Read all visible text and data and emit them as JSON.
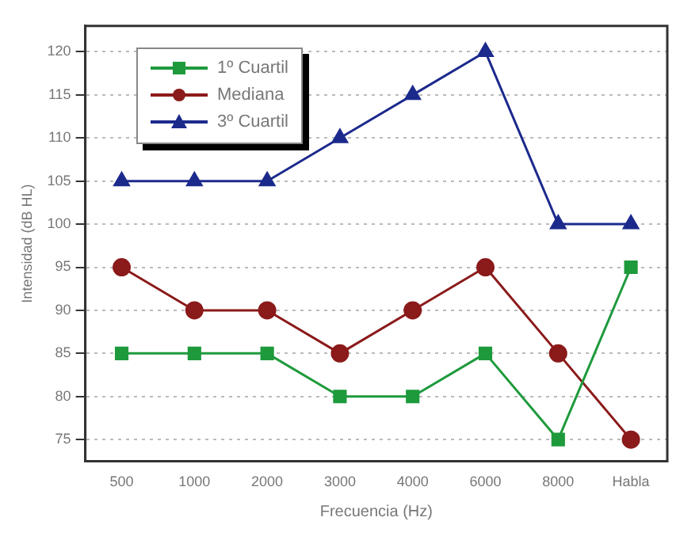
{
  "chart_data": {
    "type": "line",
    "xlabel": "Frecuencia (Hz)",
    "ylabel": "Intensidad (dB HL)",
    "categories": [
      "500",
      "1000",
      "2000",
      "3000",
      "4000",
      "6000",
      "8000",
      "Habla"
    ],
    "series": [
      {
        "name": "1º Cuartil",
        "color": "#1e9a3c",
        "values": [
          85,
          85,
          85,
          80,
          80,
          85,
          75,
          95
        ],
        "marker": "square"
      },
      {
        "name": "Mediana",
        "color": "#8b1a1a",
        "values": [
          95,
          90,
          90,
          85,
          90,
          95,
          85,
          75
        ],
        "marker": "circle"
      },
      {
        "name": "3º Cuartil",
        "color": "#1c2a8c",
        "values": [
          105,
          105,
          105,
          110,
          115,
          120,
          100,
          100
        ],
        "marker": "triangle"
      }
    ],
    "ylim": [
      72.5,
      123
    ],
    "yticks": [
      75,
      80,
      85,
      90,
      95,
      100,
      105,
      110,
      115,
      120
    ],
    "grid": "y",
    "legend": "top left",
    "line_style": "solid"
  }
}
